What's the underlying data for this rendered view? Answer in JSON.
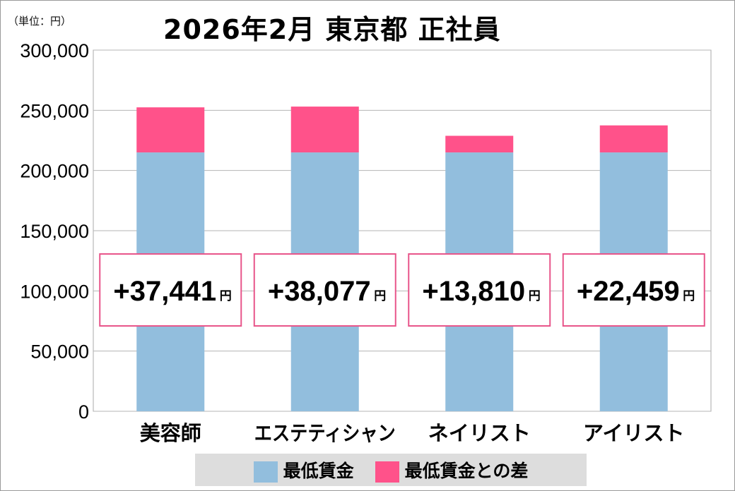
{
  "unit_label": "（単位：円）",
  "chart_data": {
    "type": "bar",
    "stacked": true,
    "title": "2026年2月 東京都 正社員",
    "categories": [
      "美容師",
      "エステティシャン",
      "ネイリスト",
      "アイリスト"
    ],
    "series": [
      {
        "name": "最低賃金",
        "values": [
          215000,
          215000,
          215000,
          215000
        ],
        "color": "#92bedd"
      },
      {
        "name": "最低賃金との差",
        "values": [
          37441,
          38077,
          13810,
          22459
        ],
        "color": "#ff528a"
      }
    ],
    "data_labels": [
      "+37,441",
      "+38,077",
      "+13,810",
      "+22,459"
    ],
    "data_label_unit": "円",
    "yticks": [
      "0",
      "50,000",
      "100,000",
      "150,000",
      "200,000",
      "250,000",
      "300,000"
    ],
    "ylim": [
      0,
      300000
    ],
    "grid": true,
    "legend": "bottom"
  }
}
